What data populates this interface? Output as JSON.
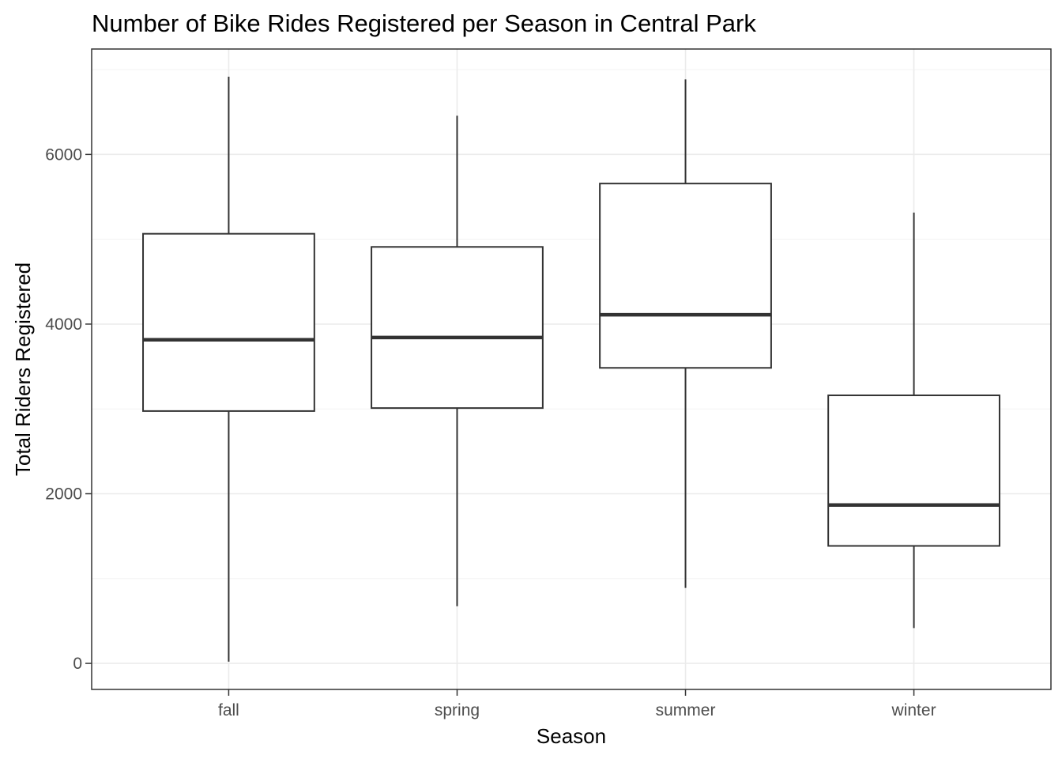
{
  "chart_data": {
    "type": "boxplot",
    "title": "Number of Bike Rides Registered per Season in Central Park",
    "xlabel": "Season",
    "ylabel": "Total Riders Registered",
    "categories": [
      "fall",
      "spring",
      "summer",
      "winter"
    ],
    "boxes": [
      {
        "category": "fall",
        "min": 20,
        "q1": 2975,
        "median": 3815,
        "q3": 5065,
        "max": 6917
      },
      {
        "category": "spring",
        "min": 674,
        "q1": 3010,
        "median": 3842,
        "q3": 4910,
        "max": 6456
      },
      {
        "category": "summer",
        "min": 889,
        "q1": 3484,
        "median": 4110,
        "q3": 5657,
        "max": 6885
      },
      {
        "category": "winter",
        "min": 416,
        "q1": 1385,
        "median": 1867,
        "q3": 3160,
        "max": 5315
      }
    ],
    "ylim": [
      -307,
      7243
    ],
    "yticks": [
      0,
      2000,
      4000,
      6000
    ],
    "ytick_labels": [
      "0",
      "2000",
      "4000",
      "6000"
    ],
    "grid": true,
    "theme": "bw"
  }
}
